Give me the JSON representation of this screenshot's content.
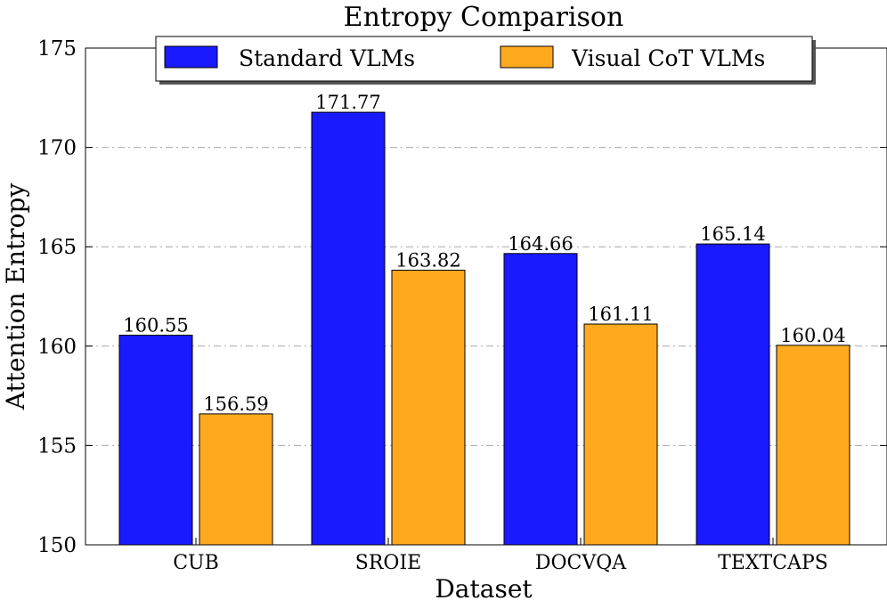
{
  "chart_data": {
    "type": "bar",
    "title": "Entropy Comparison",
    "xlabel": "Dataset",
    "ylabel": "Attention Entropy",
    "ylim": [
      150,
      175
    ],
    "yticks": [
      150,
      155,
      160,
      165,
      170,
      175
    ],
    "grid": true,
    "legend_position": "top-center",
    "categories": [
      "CUB",
      "SROIE",
      "DOCVQA",
      "TEXTCAPS"
    ],
    "series": [
      {
        "name": "Standard VLMs",
        "color": "#1a1aff",
        "values": [
          160.55,
          171.77,
          164.66,
          165.14
        ],
        "labels": [
          "160.55",
          "171.77",
          "164.66",
          "165.14"
        ]
      },
      {
        "name": "Visual CoT VLMs",
        "color": "#ffa91f",
        "values": [
          156.59,
          163.82,
          161.11,
          160.04
        ],
        "labels": [
          "156.59",
          "163.82",
          "161.11",
          "160.04"
        ]
      }
    ]
  }
}
